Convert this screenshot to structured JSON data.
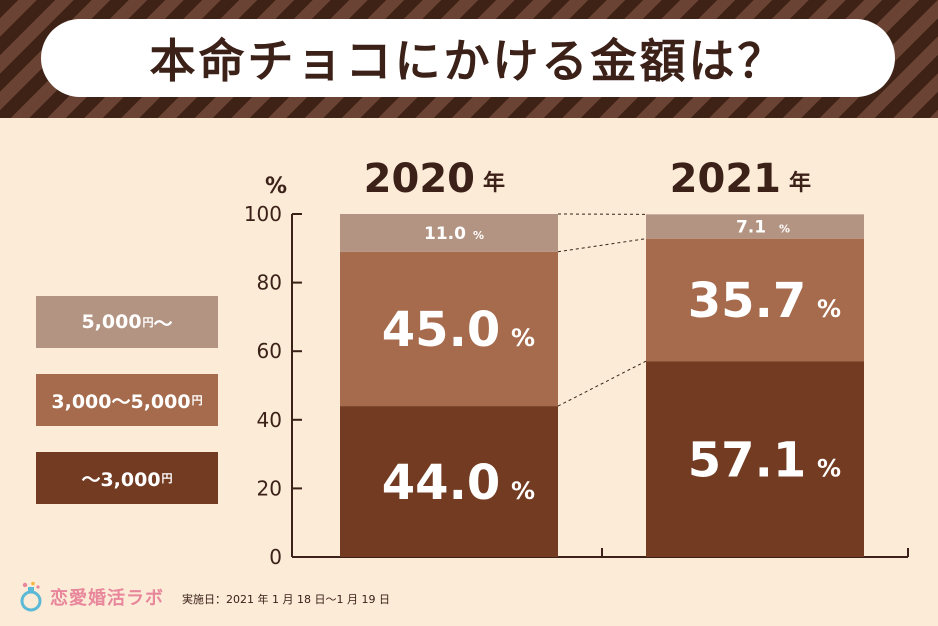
{
  "title": "本命チョコにかける金額は？",
  "colors": {
    "over_5000": "#b39482",
    "mid": "#a66a4c",
    "under_3000": "#733b22",
    "text_dark": "#3b2118",
    "background": "#fbebd7",
    "logo": "#e8879b"
  },
  "legend": [
    {
      "label": "5,000",
      "unit": "円",
      "suffix": " 〜",
      "color": "#b39482"
    },
    {
      "label": "3,000〜5,000",
      "unit": "円",
      "suffix": "",
      "color": "#a66a4c"
    },
    {
      "label": "〜3,000",
      "unit": "円",
      "suffix": "",
      "color": "#733b22"
    }
  ],
  "chart_data": {
    "type": "bar",
    "stacked": true,
    "categories": [
      "2020",
      "2021"
    ],
    "category_unit": "年",
    "series": [
      {
        "name": "〜3,000円",
        "values": [
          44.0,
          57.1
        ],
        "color": "#733b22"
      },
      {
        "name": "3,000〜5,000円",
        "values": [
          45.0,
          35.7
        ],
        "color": "#a66a4c"
      },
      {
        "name": "5,000円 〜",
        "values": [
          11.0,
          7.1
        ],
        "color": "#b39482"
      }
    ],
    "data_labels": [
      [
        "44.0",
        "57.1"
      ],
      [
        "45.0",
        "35.7"
      ],
      [
        "11.0",
        "7.1"
      ]
    ],
    "value_suffix": "%",
    "ylabel": "%",
    "yticks": [
      0,
      20,
      40,
      60,
      80,
      100
    ],
    "ylim": [
      0,
      100
    ]
  },
  "footer": {
    "logo_text": "恋愛婚活ラボ",
    "date": "実施日：2021 年 1 月 18 日〜1 月 19 日"
  }
}
